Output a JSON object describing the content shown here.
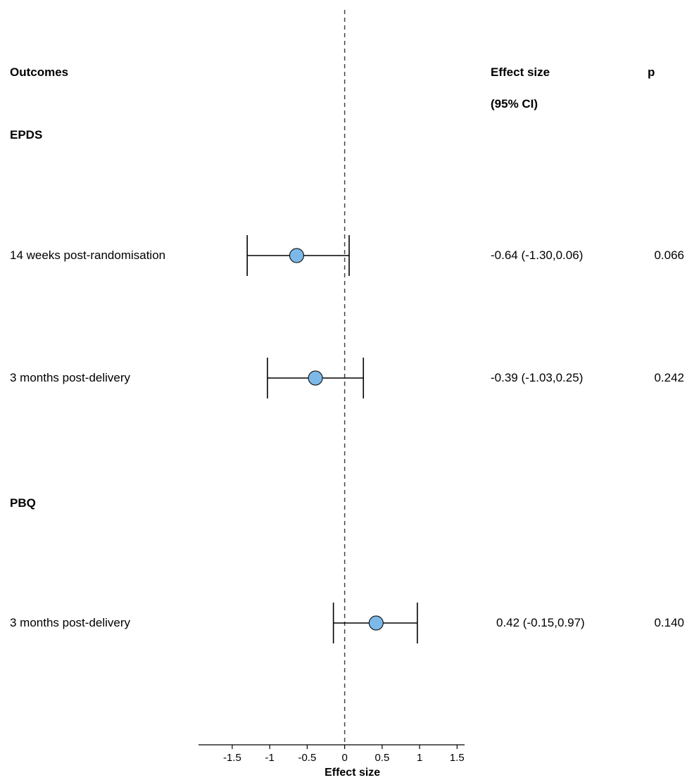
{
  "headers": {
    "outcomes": "Outcomes",
    "effect_size_line1": "Effect size",
    "effect_size_line2": "(95% CI)",
    "p": "p"
  },
  "groups": [
    {
      "label": "EPDS",
      "rows": [
        {
          "label": "14 weeks post-randomisation",
          "ci_text": "-0.64 (-1.30,0.06)",
          "p": "0.066"
        },
        {
          "label": "3 months post-delivery",
          "ci_text": "-0.39 (-1.03,0.25)",
          "p": "0.242"
        }
      ]
    },
    {
      "label": "PBQ",
      "rows": [
        {
          "label": "3 months post-delivery",
          "ci_text": "0.42 (-0.15,0.97)",
          "p": "0.140"
        }
      ]
    }
  ],
  "chart_data": {
    "type": "forest",
    "xlabel": "Effect size",
    "xlim": [
      -1.95,
      1.6
    ],
    "x_ticks": [
      -1.5,
      -1,
      -0.5,
      0,
      0.5,
      1,
      1.5
    ],
    "x_tick_labels": [
      "-1.5",
      "-1",
      "-0.5",
      "0",
      "0.5",
      "1",
      "1.5"
    ],
    "reference_line": 0,
    "marker_color": "#7cb9e8",
    "points": [
      {
        "label": "14 weeks post-randomisation",
        "estimate": -0.64,
        "lower": -1.3,
        "upper": 0.06
      },
      {
        "label": "3 months post-delivery",
        "estimate": -0.39,
        "lower": -1.03,
        "upper": 0.25
      },
      {
        "label": "3 months post-delivery",
        "estimate": 0.42,
        "lower": -0.15,
        "upper": 0.97
      }
    ]
  }
}
